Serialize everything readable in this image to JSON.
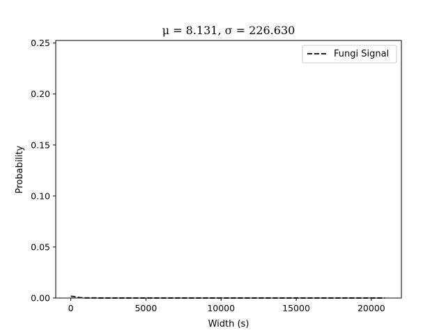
{
  "chart_data": {
    "type": "line",
    "title": "μ = 8.131,  σ = 226.630",
    "xlabel": "Width (s)",
    "ylabel": "Probability",
    "xlim": [
      -1000,
      22000
    ],
    "ylim": [
      0,
      0.2525
    ],
    "xticks": [
      0,
      5000,
      10000,
      15000,
      20000
    ],
    "xtick_labels": [
      "0",
      "5000",
      "10000",
      "15000",
      "20000"
    ],
    "yticks": [
      0.0,
      0.05,
      0.1,
      0.15,
      0.2,
      0.25
    ],
    "ytick_labels": [
      "0.00",
      "0.05",
      "0.10",
      "0.15",
      "0.20",
      "0.25"
    ],
    "grid": false,
    "legend_position": "top-right",
    "series": [
      {
        "name": "Fungi Signal",
        "style": "dashed",
        "color": "#000000",
        "x": [
          0,
          300,
          600,
          1000,
          2000,
          5000,
          10000,
          15000,
          20000,
          20900
        ],
        "y": [
          0.0018,
          0.0012,
          0.0004,
          0.0001,
          2e-05,
          0.0,
          0.0,
          0.0,
          0.0,
          0.0
        ]
      }
    ]
  }
}
